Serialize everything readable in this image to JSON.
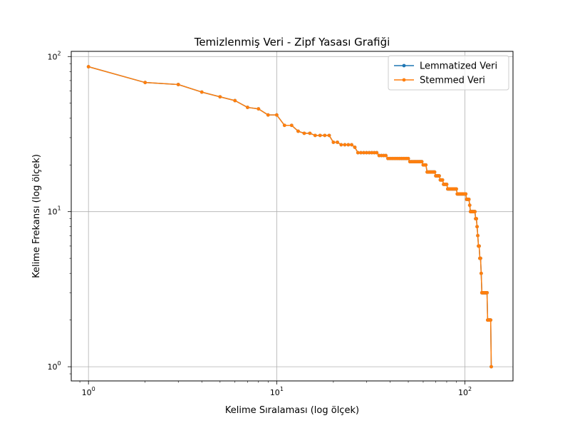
{
  "chart_data": {
    "type": "line",
    "title": "Temizlenmiş Veri - Zipf Yasası Grafiği",
    "xlabel": "Kelime Sıralaması (log ölçek)",
    "ylabel": "Kelime Frekansı (log ölçek)",
    "xscale": "log",
    "yscale": "log",
    "xlim": [
      0.81,
      180
    ],
    "ylim": [
      0.81,
      108
    ],
    "grid": true,
    "legend_position": "top-right",
    "x_ticks": [
      {
        "value": 1,
        "base": "10",
        "exp": "0"
      },
      {
        "value": 10,
        "base": "10",
        "exp": "1"
      },
      {
        "value": 100,
        "base": "10",
        "exp": "2"
      }
    ],
    "y_ticks": [
      {
        "value": 1,
        "base": "10",
        "exp": "0"
      },
      {
        "value": 10,
        "base": "10",
        "exp": "1"
      },
      {
        "value": 100,
        "base": "10",
        "exp": "2"
      }
    ],
    "series": [
      {
        "name": "Lemmatized Veri",
        "color": "#1f77b4",
        "values": [
          86,
          68,
          66,
          59,
          55,
          52,
          47,
          46,
          42,
          42,
          36,
          36,
          33,
          32,
          32,
          31,
          31,
          31,
          31,
          28,
          28,
          27,
          27,
          27,
          27,
          26,
          24,
          24,
          24,
          24,
          24,
          24,
          24,
          24,
          23,
          23,
          23,
          23,
          22,
          22,
          22,
          22,
          22,
          22,
          22,
          22,
          22,
          22,
          22,
          22,
          21,
          21,
          21,
          21,
          21,
          21,
          21,
          21,
          21,
          20,
          20,
          20,
          18,
          18,
          18,
          18,
          18,
          18,
          18,
          17,
          17,
          17,
          17,
          16,
          16,
          16,
          15,
          15,
          15,
          15,
          14,
          14,
          14,
          14,
          14,
          14,
          14,
          14,
          14,
          14,
          13,
          13,
          13,
          13,
          13,
          13,
          13,
          13,
          13,
          13,
          13,
          12,
          12,
          12,
          12,
          11,
          10,
          10,
          10,
          10,
          10,
          10,
          10,
          9,
          9,
          8,
          7,
          6,
          6,
          5,
          5,
          4,
          3,
          3,
          3,
          3,
          3,
          3,
          3,
          3,
          3,
          2,
          2,
          2,
          2,
          2,
          2,
          1
        ]
      },
      {
        "name": "Stemmed Veri",
        "color": "#ff7f0e",
        "values": [
          86,
          68,
          66,
          59,
          55,
          52,
          47,
          46,
          42,
          42,
          36,
          36,
          33,
          32,
          32,
          31,
          31,
          31,
          31,
          28,
          28,
          27,
          27,
          27,
          27,
          26,
          24,
          24,
          24,
          24,
          24,
          24,
          24,
          24,
          23,
          23,
          23,
          23,
          22,
          22,
          22,
          22,
          22,
          22,
          22,
          22,
          22,
          22,
          22,
          22,
          21,
          21,
          21,
          21,
          21,
          21,
          21,
          21,
          21,
          20,
          20,
          20,
          18,
          18,
          18,
          18,
          18,
          18,
          18,
          17,
          17,
          17,
          17,
          16,
          16,
          16,
          15,
          15,
          15,
          15,
          14,
          14,
          14,
          14,
          14,
          14,
          14,
          14,
          14,
          14,
          13,
          13,
          13,
          13,
          13,
          13,
          13,
          13,
          13,
          13,
          13,
          12,
          12,
          12,
          12,
          11,
          10,
          10,
          10,
          10,
          10,
          10,
          10,
          9,
          9,
          8,
          7,
          6,
          6,
          5,
          5,
          4,
          3,
          3,
          3,
          3,
          3,
          3,
          3,
          3,
          3,
          2,
          2,
          2,
          2,
          2,
          2,
          1
        ]
      }
    ]
  }
}
